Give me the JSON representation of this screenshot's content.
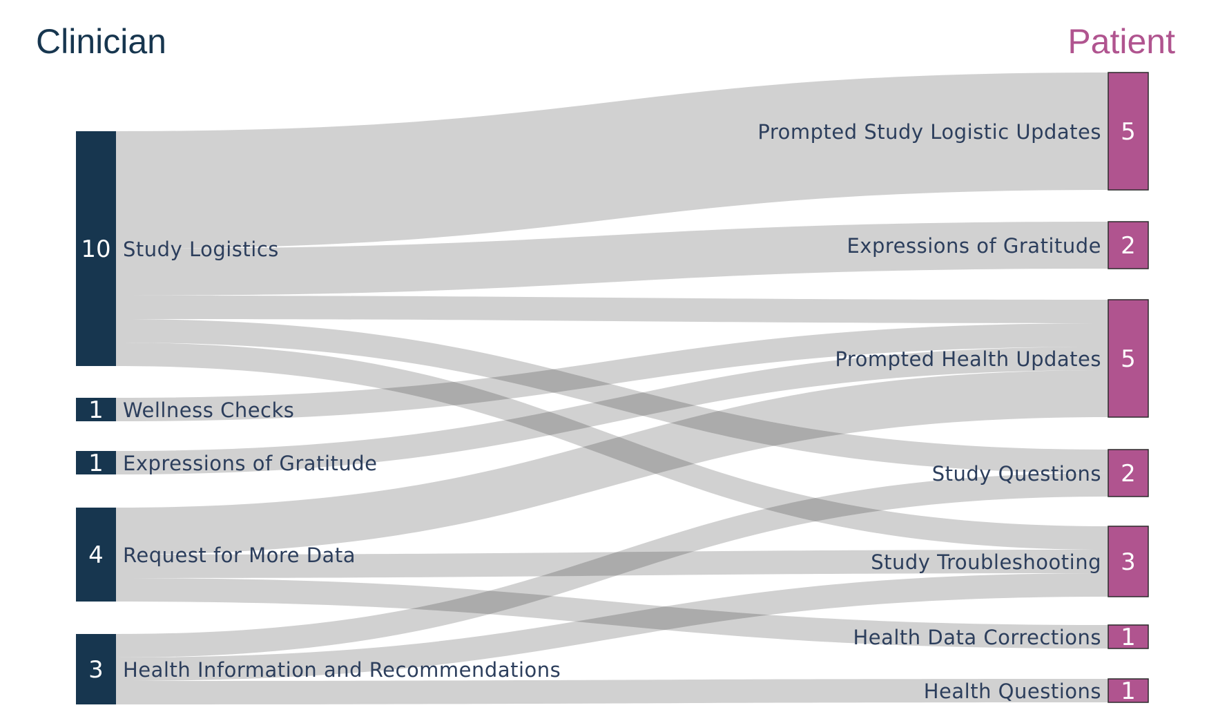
{
  "headers": {
    "left": "Clinician",
    "right": "Patient"
  },
  "colors": {
    "clinician_node": "#17364f",
    "patient_node": "#b0548f",
    "link": "#c9c9c9"
  },
  "left_nodes": [
    {
      "id": "study_logistics",
      "label": "Study Logistics",
      "count": "10"
    },
    {
      "id": "wellness_checks",
      "label": "Wellness Checks",
      "count": "1"
    },
    {
      "id": "gratitude_c",
      "label": "Expressions of Gratitude",
      "count": "1"
    },
    {
      "id": "more_data",
      "label": "Request for More Data",
      "count": "4"
    },
    {
      "id": "health_info",
      "label": "Health Information and Recommendations",
      "count": "3"
    }
  ],
  "right_nodes": [
    {
      "id": "prompted_logistics",
      "label": "Prompted Study Logistic Updates",
      "count": "5"
    },
    {
      "id": "gratitude_p",
      "label": "Expressions of Gratitude",
      "count": "2"
    },
    {
      "id": "prompted_health",
      "label": "Prompted Health Updates",
      "count": "5"
    },
    {
      "id": "study_questions",
      "label": "Study Questions",
      "count": "2"
    },
    {
      "id": "troubleshooting",
      "label": "Study Troubleshooting",
      "count": "3"
    },
    {
      "id": "data_corrections",
      "label": "Health Data Corrections",
      "count": "1"
    },
    {
      "id": "health_questions",
      "label": "Health Questions",
      "count": "1"
    }
  ],
  "flows": [
    {
      "source": "study_logistics",
      "target": "prompted_logistics",
      "value": 5
    },
    {
      "source": "study_logistics",
      "target": "gratitude_p",
      "value": 2
    },
    {
      "source": "study_logistics",
      "target": "prompted_health",
      "value": 1
    },
    {
      "source": "study_logistics",
      "target": "study_questions",
      "value": 1
    },
    {
      "source": "study_logistics",
      "target": "troubleshooting",
      "value": 1
    },
    {
      "source": "wellness_checks",
      "target": "prompted_health",
      "value": 1
    },
    {
      "source": "gratitude_c",
      "target": "prompted_health",
      "value": 1
    },
    {
      "source": "more_data",
      "target": "prompted_health",
      "value": 2
    },
    {
      "source": "more_data",
      "target": "troubleshooting",
      "value": 1
    },
    {
      "source": "more_data",
      "target": "data_corrections",
      "value": 1
    },
    {
      "source": "health_info",
      "target": "study_questions",
      "value": 1
    },
    {
      "source": "health_info",
      "target": "troubleshooting",
      "value": 1
    },
    {
      "source": "health_info",
      "target": "health_questions",
      "value": 1
    }
  ]
}
